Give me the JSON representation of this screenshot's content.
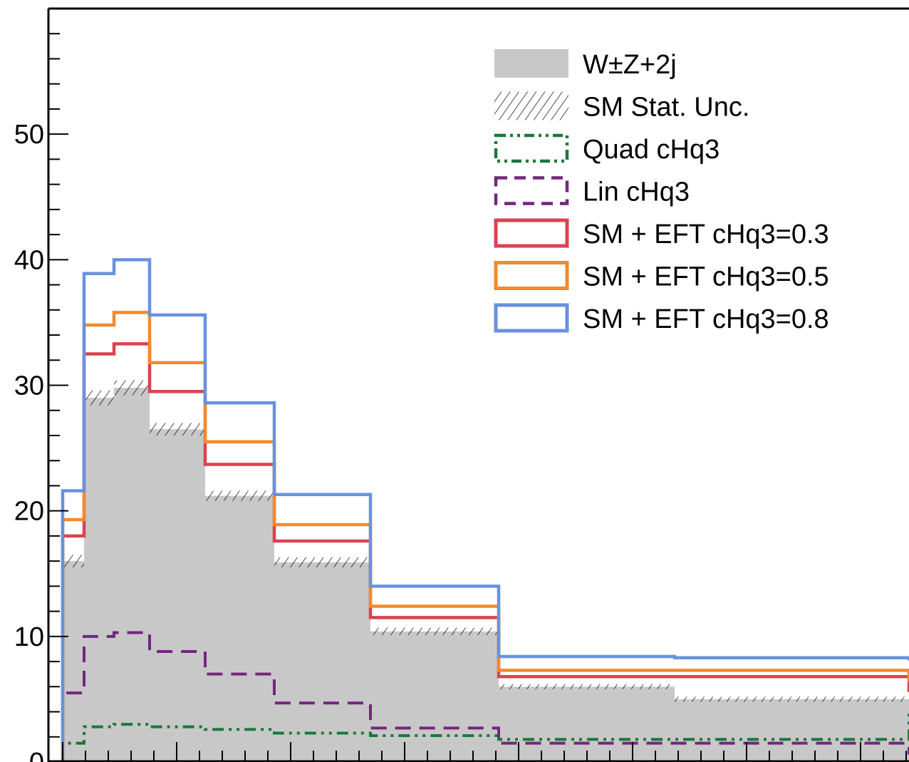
{
  "chart_data": {
    "type": "line",
    "title": "",
    "xlabel": "",
    "ylabel": "",
    "ylim": [
      0,
      60
    ],
    "y_ticks": [
      "0",
      "10",
      "20",
      "30",
      "40",
      "50"
    ],
    "bin_edges": [
      0,
      1,
      2,
      3,
      4,
      5,
      6,
      7,
      8,
      9,
      10
    ],
    "background": {
      "name": "W±Z+2j",
      "color": "#c8c8c8",
      "values": [
        16.0,
        29.0,
        29.8,
        26.5,
        21.2,
        15.9,
        10.4,
        6.0,
        5.0,
        5.0
      ]
    },
    "stat_unc": {
      "name": "SM Stat. Unc.",
      "values": [
        0.5,
        0.6,
        0.6,
        0.5,
        0.4,
        0.4,
        0.3,
        0.2,
        0.2,
        0.2
      ]
    },
    "series": [
      {
        "name": "Quad cHq3",
        "color": "#1a7a3a",
        "style": "dashdot",
        "values": [
          1.5,
          2.8,
          3.0,
          2.8,
          2.6,
          2.3,
          2.1,
          1.8,
          1.8,
          3.9
        ]
      },
      {
        "name": "Lin cHq3",
        "color": "#74267f",
        "style": "dashed",
        "values": [
          5.5,
          10.0,
          10.3,
          8.8,
          7.0,
          4.7,
          2.7,
          1.5,
          1.5,
          0.7
        ]
      },
      {
        "name": "SM + EFT cHq3=0.3",
        "color": "#d94250",
        "style": "solid",
        "values": [
          18.0,
          32.5,
          33.3,
          29.5,
          23.7,
          17.6,
          11.5,
          6.8,
          6.8,
          5.7
        ]
      },
      {
        "name": "SM + EFT cHq3=0.5",
        "color": "#f28a2e",
        "style": "solid",
        "values": [
          19.3,
          34.8,
          35.8,
          31.8,
          25.5,
          18.9,
          12.4,
          7.3,
          7.3,
          6.5
        ]
      },
      {
        "name": "SM + EFT cHq3=0.8",
        "color": "#6892e0",
        "style": "solid",
        "values": [
          21.6,
          38.9,
          40.0,
          35.6,
          28.6,
          21.3,
          14.0,
          8.4,
          8.3,
          8.2
        ]
      }
    ],
    "legend_position": "top-right",
    "grid": false
  }
}
